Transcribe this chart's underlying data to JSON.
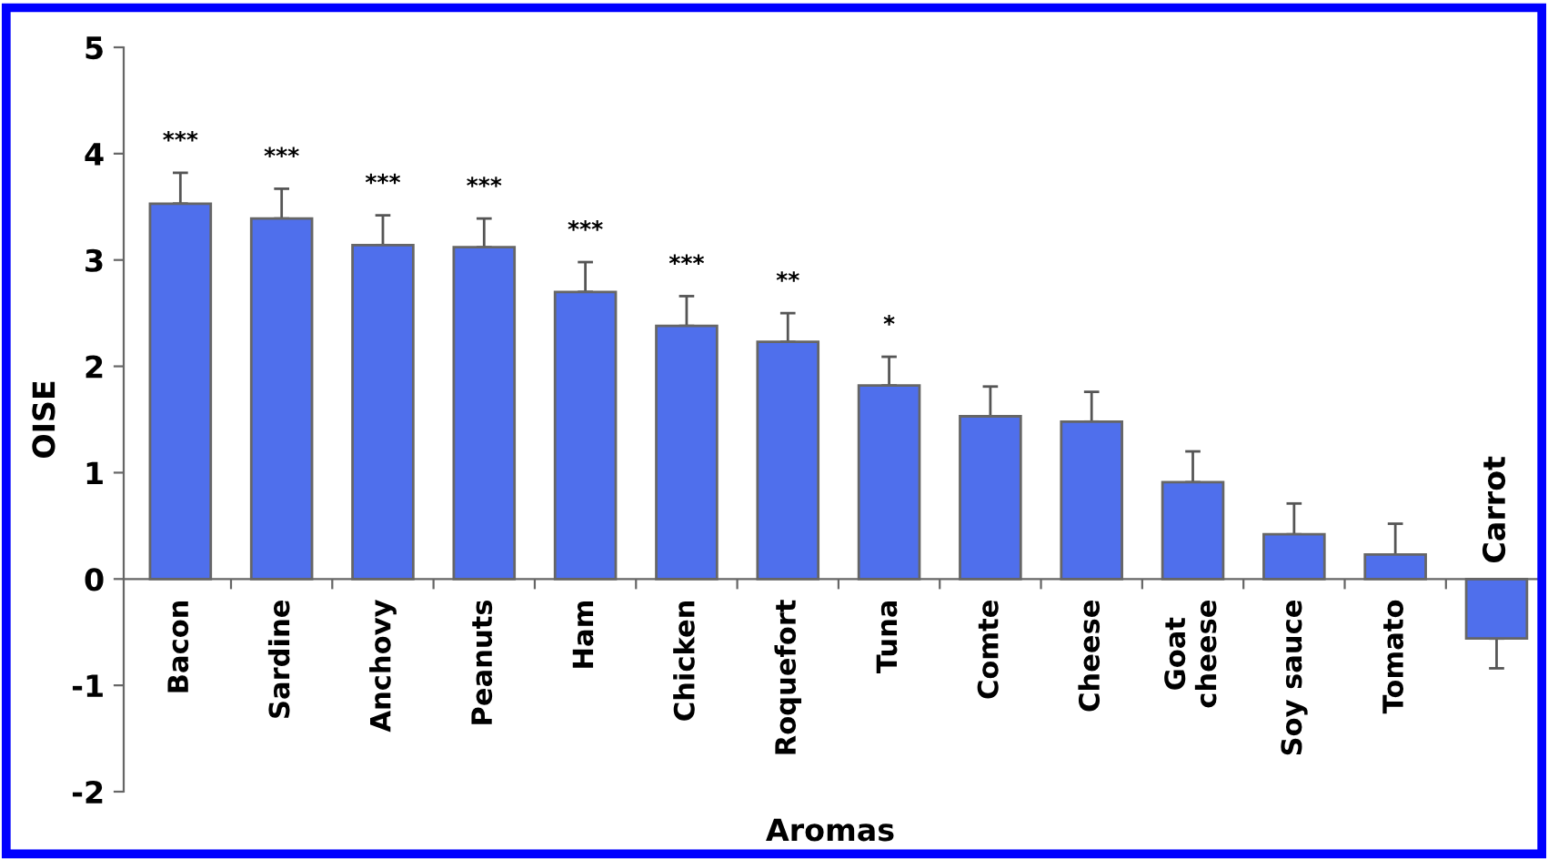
{
  "chart_data": {
    "type": "bar",
    "xlabel": "Aromas",
    "ylabel": "OISE",
    "categories": [
      "Bacon",
      "Sardine",
      "Anchovy",
      "Peanuts",
      "Ham",
      "Chicken",
      "Roquefort",
      "Tuna",
      "Comte",
      "Cheese",
      "Goat\ncheese",
      "Soy sauce",
      "Tomato",
      "Carrot"
    ],
    "values": [
      3.53,
      3.39,
      3.14,
      3.12,
      2.7,
      2.38,
      2.23,
      1.82,
      1.53,
      1.48,
      0.91,
      0.42,
      0.23,
      -0.56
    ],
    "errors": [
      [
        3.53,
        3.82
      ],
      [
        3.39,
        3.67
      ],
      [
        3.14,
        3.42
      ],
      [
        3.12,
        3.39
      ],
      [
        2.7,
        2.98
      ],
      [
        2.38,
        2.66
      ],
      [
        2.23,
        2.5
      ],
      [
        1.82,
        2.09
      ],
      [
        1.53,
        1.81
      ],
      [
        1.48,
        1.76
      ],
      [
        0.91,
        1.2
      ],
      [
        0.42,
        0.71
      ],
      [
        0.23,
        0.52
      ],
      [
        -0.84,
        -0.56
      ]
    ],
    "color": "#4f6fec",
    "ylim": [
      -2,
      5
    ],
    "yticks": [
      -2,
      -1,
      0,
      1,
      2,
      3,
      4,
      5
    ],
    "grid": false,
    "legend": false,
    "annotations": [
      "***",
      "***",
      "***",
      "***",
      "***",
      "***",
      "**",
      "*"
    ]
  }
}
